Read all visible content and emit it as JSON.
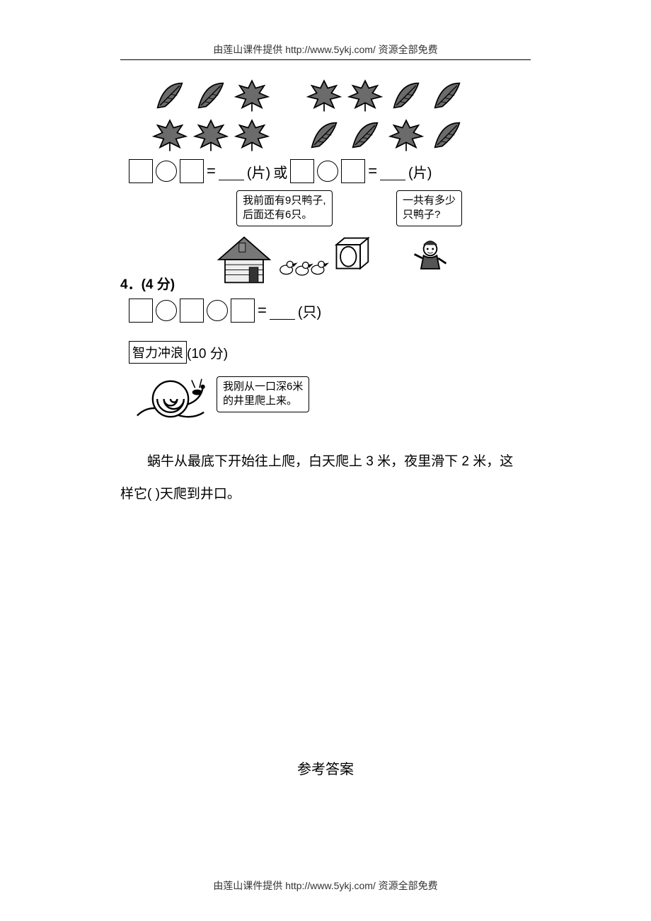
{
  "header": "由莲山课件提供 http://www.5ykj.com/    资源全部免费",
  "footer": "由莲山课件提供 http://www.5ykj.com/    资源全部免费",
  "leaves": {
    "feather_color": "#555555",
    "maple_color": "#555555",
    "row1": [
      "feather",
      "feather",
      "maple",
      "gap",
      "maple",
      "maple",
      "feather",
      "feather"
    ],
    "row2": [
      "maple",
      "maple",
      "maple",
      "gap",
      "feather",
      "feather",
      "maple",
      "feather"
    ]
  },
  "eq1": {
    "eq_sign": "=",
    "unit": "(片)",
    "or": "或",
    "unit2": "(片)"
  },
  "ducks": {
    "bubble_left_l1": "我前面有9只鸭子,",
    "bubble_left_l2": "后面还有6只。",
    "bubble_right_l1": "一共有多少",
    "bubble_right_l2": "只鸭子?"
  },
  "p4": {
    "label": "4．(4 分)",
    "eq_sign": "=",
    "unit": "(只)"
  },
  "bonus": {
    "box": "智力冲浪",
    "score": "(10 分)",
    "snail_bubble_l1": "我刚从一口深6米",
    "snail_bubble_l2": "的井里爬上来。",
    "text1": "蜗牛从最底下开始往上爬，白天爬上 3 米，夜里滑下 2 米，这",
    "text2": "样它(        )天爬到井口。"
  },
  "answers_title": "参考答案",
  "colors": {
    "text": "#000000",
    "bg": "#ffffff",
    "stroke": "#000000",
    "fill_gray": "#6b6b6b",
    "fill_light": "#cccccc"
  }
}
